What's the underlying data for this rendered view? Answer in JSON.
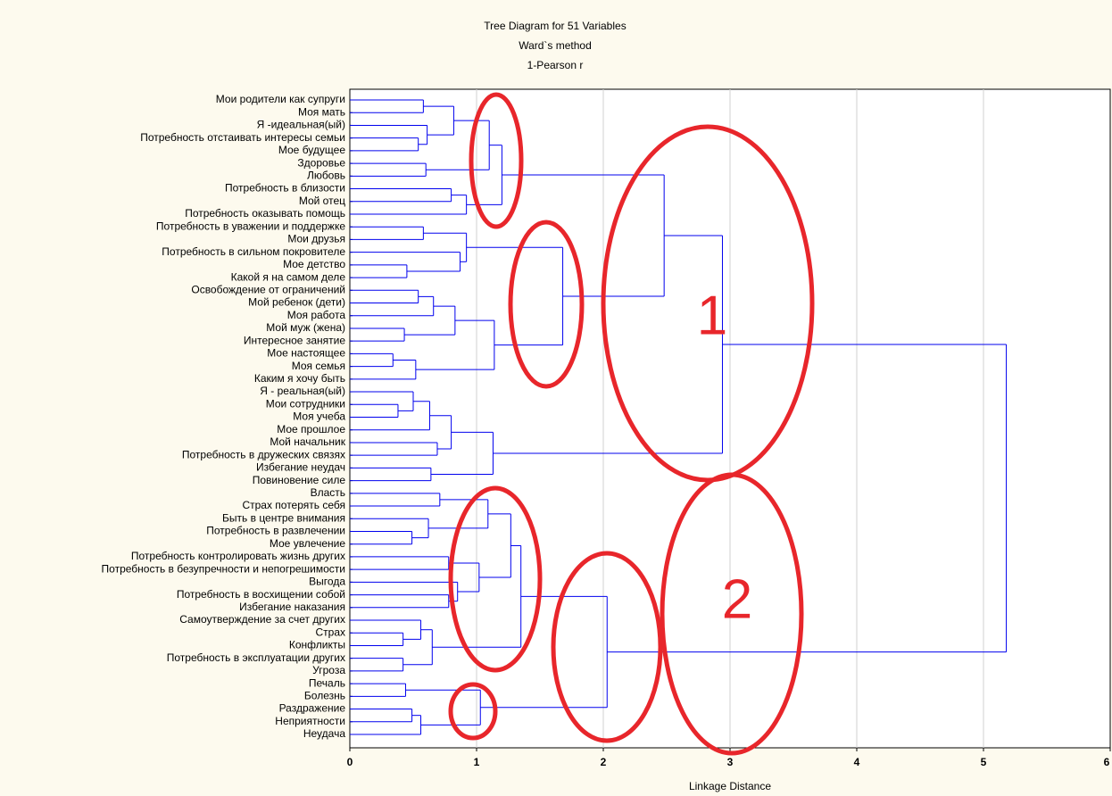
{
  "chart_data": {
    "type": "dendrogram",
    "title": "Tree Diagram for 51 Variables",
    "subtitle": [
      "Ward`s method",
      "1-Pearson r"
    ],
    "x_label": "Linkage Distance",
    "annotations": [
      "1",
      "2"
    ],
    "xlim": [
      0,
      6
    ],
    "xticks": [
      0,
      1,
      2,
      3,
      4,
      5,
      6
    ],
    "grid": true,
    "color": "#0000ee",
    "tree": {
      "height": 5.18,
      "children": [
        {
          "height": 2.94,
          "children": [
            {
              "height": 2.48,
              "children": [
                {
                  "height": 1.2,
                  "children": [
                    {
                      "height": 1.1,
                      "children": [
                        {
                          "height": 0.82,
                          "children": [
                            {
                              "height": 0.58,
                              "children": [
                                "Мои родители как супруги",
                                "Моя мать"
                              ]
                            },
                            {
                              "height": 0.61,
                              "children": [
                                "Я -идеальная(ый)",
                                {
                                  "height": 0.54,
                                  "children": [
                                    "Потребность отстаивать интересы семьи",
                                    "Мое будущее"
                                  ]
                                }
                              ]
                            }
                          ]
                        },
                        {
                          "height": 0.6,
                          "children": [
                            "Здоровье",
                            "Любовь"
                          ]
                        }
                      ]
                    },
                    {
                      "height": 0.92,
                      "children": [
                        {
                          "height": 0.8,
                          "children": [
                            "Потребность в близости",
                            "Мой отец"
                          ]
                        },
                        "Потребность оказывать помощь"
                      ]
                    }
                  ]
                },
                {
                  "height": 1.68,
                  "children": [
                    {
                      "height": 0.92,
                      "children": [
                        {
                          "height": 0.58,
                          "children": [
                            "Потребность в уважении и поддержке",
                            "Мои друзья"
                          ]
                        },
                        {
                          "height": 0.87,
                          "children": [
                            "Потребность в сильном покровителе",
                            {
                              "height": 0.45,
                              "children": [
                                "Мое детство",
                                "Какой я на самом деле"
                              ]
                            }
                          ]
                        }
                      ]
                    },
                    {
                      "height": 1.14,
                      "children": [
                        {
                          "height": 0.83,
                          "children": [
                            {
                              "height": 0.66,
                              "children": [
                                {
                                  "height": 0.54,
                                  "children": [
                                    "Освобождение от ограничений",
                                    "Мой ребенок (дети)"
                                  ]
                                },
                                "Моя работа"
                              ]
                            },
                            {
                              "height": 0.43,
                              "children": [
                                "Мой муж (жена)",
                                "Интересное занятие"
                              ]
                            }
                          ]
                        },
                        {
                          "height": 0.52,
                          "children": [
                            {
                              "height": 0.34,
                              "children": [
                                "Мое настоящее",
                                "Моя семья"
                              ]
                            },
                            "Каким я хочу быть"
                          ]
                        }
                      ]
                    }
                  ]
                }
              ]
            },
            {
              "height": 1.13,
              "children": [
                {
                  "height": 0.8,
                  "children": [
                    {
                      "height": 0.63,
                      "children": [
                        {
                          "height": 0.5,
                          "children": [
                            "Я - реальная(ый)",
                            {
                              "height": 0.38,
                              "children": [
                                "Мои сотрудники",
                                "Моя учеба"
                              ]
                            }
                          ]
                        },
                        "Мое прошлое"
                      ]
                    },
                    {
                      "height": 0.69,
                      "children": [
                        "Мой начальник",
                        "Потребность в дружеских связях"
                      ]
                    }
                  ]
                },
                {
                  "height": 0.64,
                  "children": [
                    "Избегание неудач",
                    "Повиновение силе"
                  ]
                }
              ]
            }
          ]
        },
        {
          "height": 2.03,
          "children": [
            {
              "height": 1.35,
              "children": [
                {
                  "height": 1.27,
                  "children": [
                    {
                      "height": 1.09,
                      "children": [
                        {
                          "height": 0.71,
                          "children": [
                            "Власть",
                            "Страх потерять себя"
                          ]
                        },
                        {
                          "height": 0.62,
                          "children": [
                            "Быть в центре внимания",
                            {
                              "height": 0.49,
                              "children": [
                                "Потребность в развлечении",
                                "Мое увлечение"
                              ]
                            }
                          ]
                        }
                      ]
                    },
                    {
                      "height": 1.02,
                      "children": [
                        {
                          "height": 0.78,
                          "children": [
                            "Потребность контролировать жизнь других",
                            "Потребность в безупречности и непогрешимости"
                          ]
                        },
                        {
                          "height": 0.85,
                          "children": [
                            "Выгода",
                            {
                              "height": 0.78,
                              "children": [
                                "Потребность в восхищении собой",
                                "Избегание наказания"
                              ]
                            }
                          ]
                        }
                      ]
                    }
                  ]
                },
                {
                  "height": 0.65,
                  "children": [
                    {
                      "height": 0.56,
                      "children": [
                        "Самоутверждение за счет других",
                        {
                          "height": 0.42,
                          "children": [
                            "Страх",
                            "Конфликты"
                          ]
                        }
                      ]
                    },
                    {
                      "height": 0.42,
                      "children": [
                        "Потребность в эксплуатации других",
                        "Угроза"
                      ]
                    }
                  ]
                }
              ]
            },
            {
              "height": 1.03,
              "children": [
                {
                  "height": 0.44,
                  "children": [
                    "Печаль",
                    "Болезнь"
                  ]
                },
                {
                  "height": 0.56,
                  "children": [
                    {
                      "height": 0.49,
                      "children": [
                        "Раздражение",
                        "Неприятности"
                      ]
                    },
                    "Неудача"
                  ]
                }
              ]
            }
          ]
        }
      ]
    }
  }
}
